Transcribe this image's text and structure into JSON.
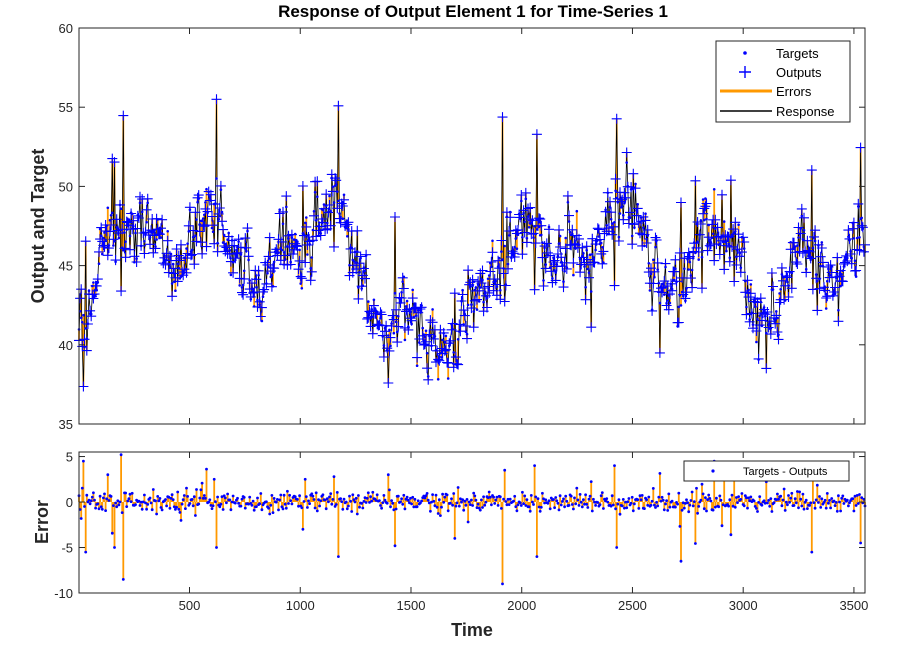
{
  "chart_data": [
    {
      "type": "line",
      "title": "Response of Output Element 1 for Time-Series 1",
      "ylabel": "Output and Target",
      "xlim": [
        1,
        3550
      ],
      "ylim": [
        35,
        60
      ],
      "yticks": [
        35,
        40,
        45,
        50,
        55,
        60
      ],
      "grid": false,
      "legend_placement": "top-right",
      "legend": [
        {
          "label": "Targets",
          "marker": "dot",
          "color": "#0000ff"
        },
        {
          "label": "Outputs",
          "marker": "plus",
          "color": "#0000ff"
        },
        {
          "label": "Errors",
          "marker": "line",
          "color": "#ff9900"
        },
        {
          "label": "Response",
          "marker": "line",
          "color": "#000000"
        }
      ],
      "colors": {
        "targets": "#0000ff",
        "outputs": "#0000ff",
        "errors": "#ff9900",
        "response": "#000000"
      },
      "baseline_trend": {
        "x": [
          1,
          30,
          50,
          80,
          100,
          150,
          200,
          260,
          330,
          400,
          440,
          480,
          520,
          560,
          600,
          640,
          680,
          720,
          760,
          800,
          840,
          880,
          920,
          980,
          1000,
          1040,
          1080,
          1120,
          1150,
          1180,
          1220,
          1260,
          1300,
          1340,
          1380,
          1420,
          1460,
          1500,
          1540,
          1580,
          1620,
          1660,
          1700,
          1740,
          1780,
          1820,
          1860,
          1900,
          1940,
          1980,
          2020,
          2060,
          2100,
          2140,
          2180,
          2220,
          2260,
          2300,
          2340,
          2380,
          2420,
          2460,
          2500,
          2540,
          2580,
          2620,
          2660,
          2700,
          2740,
          2780,
          2820,
          2860,
          2900,
          2940,
          2980,
          3020,
          3060,
          3100,
          3140,
          3180,
          3220,
          3260,
          3300,
          3340,
          3380,
          3420,
          3460,
          3500,
          3550
        ],
        "y": [
          40.5,
          41,
          42,
          44,
          46,
          47.5,
          47.5,
          47,
          47.5,
          45.5,
          44,
          45,
          46.5,
          47.5,
          49,
          48,
          46,
          45.5,
          44.5,
          43.5,
          43.5,
          45.5,
          47,
          46.5,
          45.5,
          47,
          48,
          48.5,
          49.5,
          49,
          46.5,
          45,
          43,
          41.5,
          40.5,
          41,
          42.5,
          42,
          40.5,
          40,
          39.5,
          39.5,
          39.5,
          42,
          43,
          43.5,
          44.5,
          45,
          46,
          47,
          48,
          47.5,
          46,
          45.5,
          45.5,
          46.5,
          46,
          45,
          46,
          47,
          48,
          49,
          49,
          47,
          45.5,
          44,
          43.5,
          43,
          44,
          46,
          47.5,
          47.5,
          46.5,
          46,
          47,
          43,
          41.5,
          41,
          42,
          44,
          45.5,
          47,
          46,
          45,
          44,
          43.5,
          45,
          46.5,
          48
        ]
      }
    },
    {
      "type": "scatter",
      "xlabel": "Time",
      "ylabel": "Error",
      "xlim": [
        1,
        3550
      ],
      "ylim": [
        -10,
        5.5
      ],
      "xticks": [
        500,
        1000,
        1500,
        2000,
        2500,
        3000,
        3500
      ],
      "yticks": [
        -10,
        -5,
        0,
        5
      ],
      "grid": false,
      "legend_placement": "top-right",
      "legend": [
        {
          "label": "Targets - Outputs",
          "marker": "dot",
          "color": "#0000ff"
        }
      ],
      "colors": {
        "points": "#0000ff",
        "bars": "#ff9900"
      },
      "notable_errors": [
        {
          "x": 20,
          "y": 4.5
        },
        {
          "x": 30,
          "y": -5.5
        },
        {
          "x": 130,
          "y": 3
        },
        {
          "x": 160,
          "y": -5
        },
        {
          "x": 190,
          "y": 5.2
        },
        {
          "x": 200,
          "y": -8.5
        },
        {
          "x": 610,
          "y": 2.5
        },
        {
          "x": 620,
          "y": -5.5
        },
        {
          "x": 1020,
          "y": 2.5
        },
        {
          "x": 1150,
          "y": 2.8
        },
        {
          "x": 1170,
          "y": -6
        },
        {
          "x": 1400,
          "y": 3
        },
        {
          "x": 1700,
          "y": -4
        },
        {
          "x": 1915,
          "y": -9
        },
        {
          "x": 1925,
          "y": 3.5
        },
        {
          "x": 2060,
          "y": 4
        },
        {
          "x": 2070,
          "y": -6
        },
        {
          "x": 2420,
          "y": 4
        },
        {
          "x": 2430,
          "y": -5
        },
        {
          "x": 2720,
          "y": -6.5
        },
        {
          "x": 2870,
          "y": 4.5
        },
        {
          "x": 3310,
          "y": -5.5
        },
        {
          "x": 3530,
          "y": -4.5
        }
      ]
    }
  ]
}
